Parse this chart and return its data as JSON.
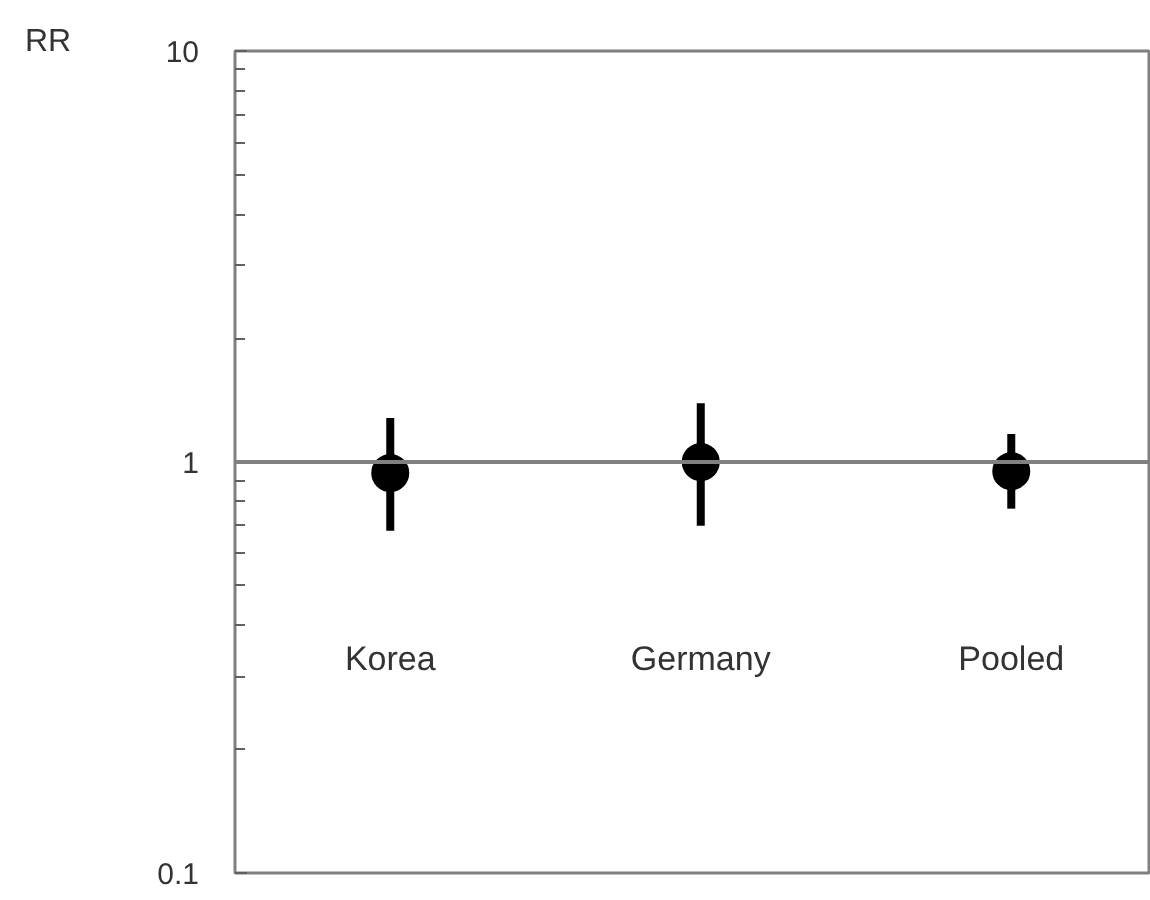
{
  "chart_data": {
    "type": "scatter",
    "ylabel": "RR",
    "categories": [
      "Korea",
      "Germany",
      "Pooled"
    ],
    "series": [
      {
        "color": "#000000",
        "values": [
          0.94,
          1.0,
          0.95
        ],
        "errors": [
          [
            0.68,
            1.28
          ],
          [
            0.7,
            1.39
          ],
          [
            0.77,
            1.17
          ]
        ]
      }
    ],
    "marker": "circle",
    "log": "y",
    "ylim": [
      0.1,
      10
    ],
    "yticks": [
      0.1,
      1,
      10
    ],
    "ref_lines": [
      {
        "axis": "y",
        "value": 1,
        "color": "#808080"
      }
    ],
    "grid": false
  }
}
